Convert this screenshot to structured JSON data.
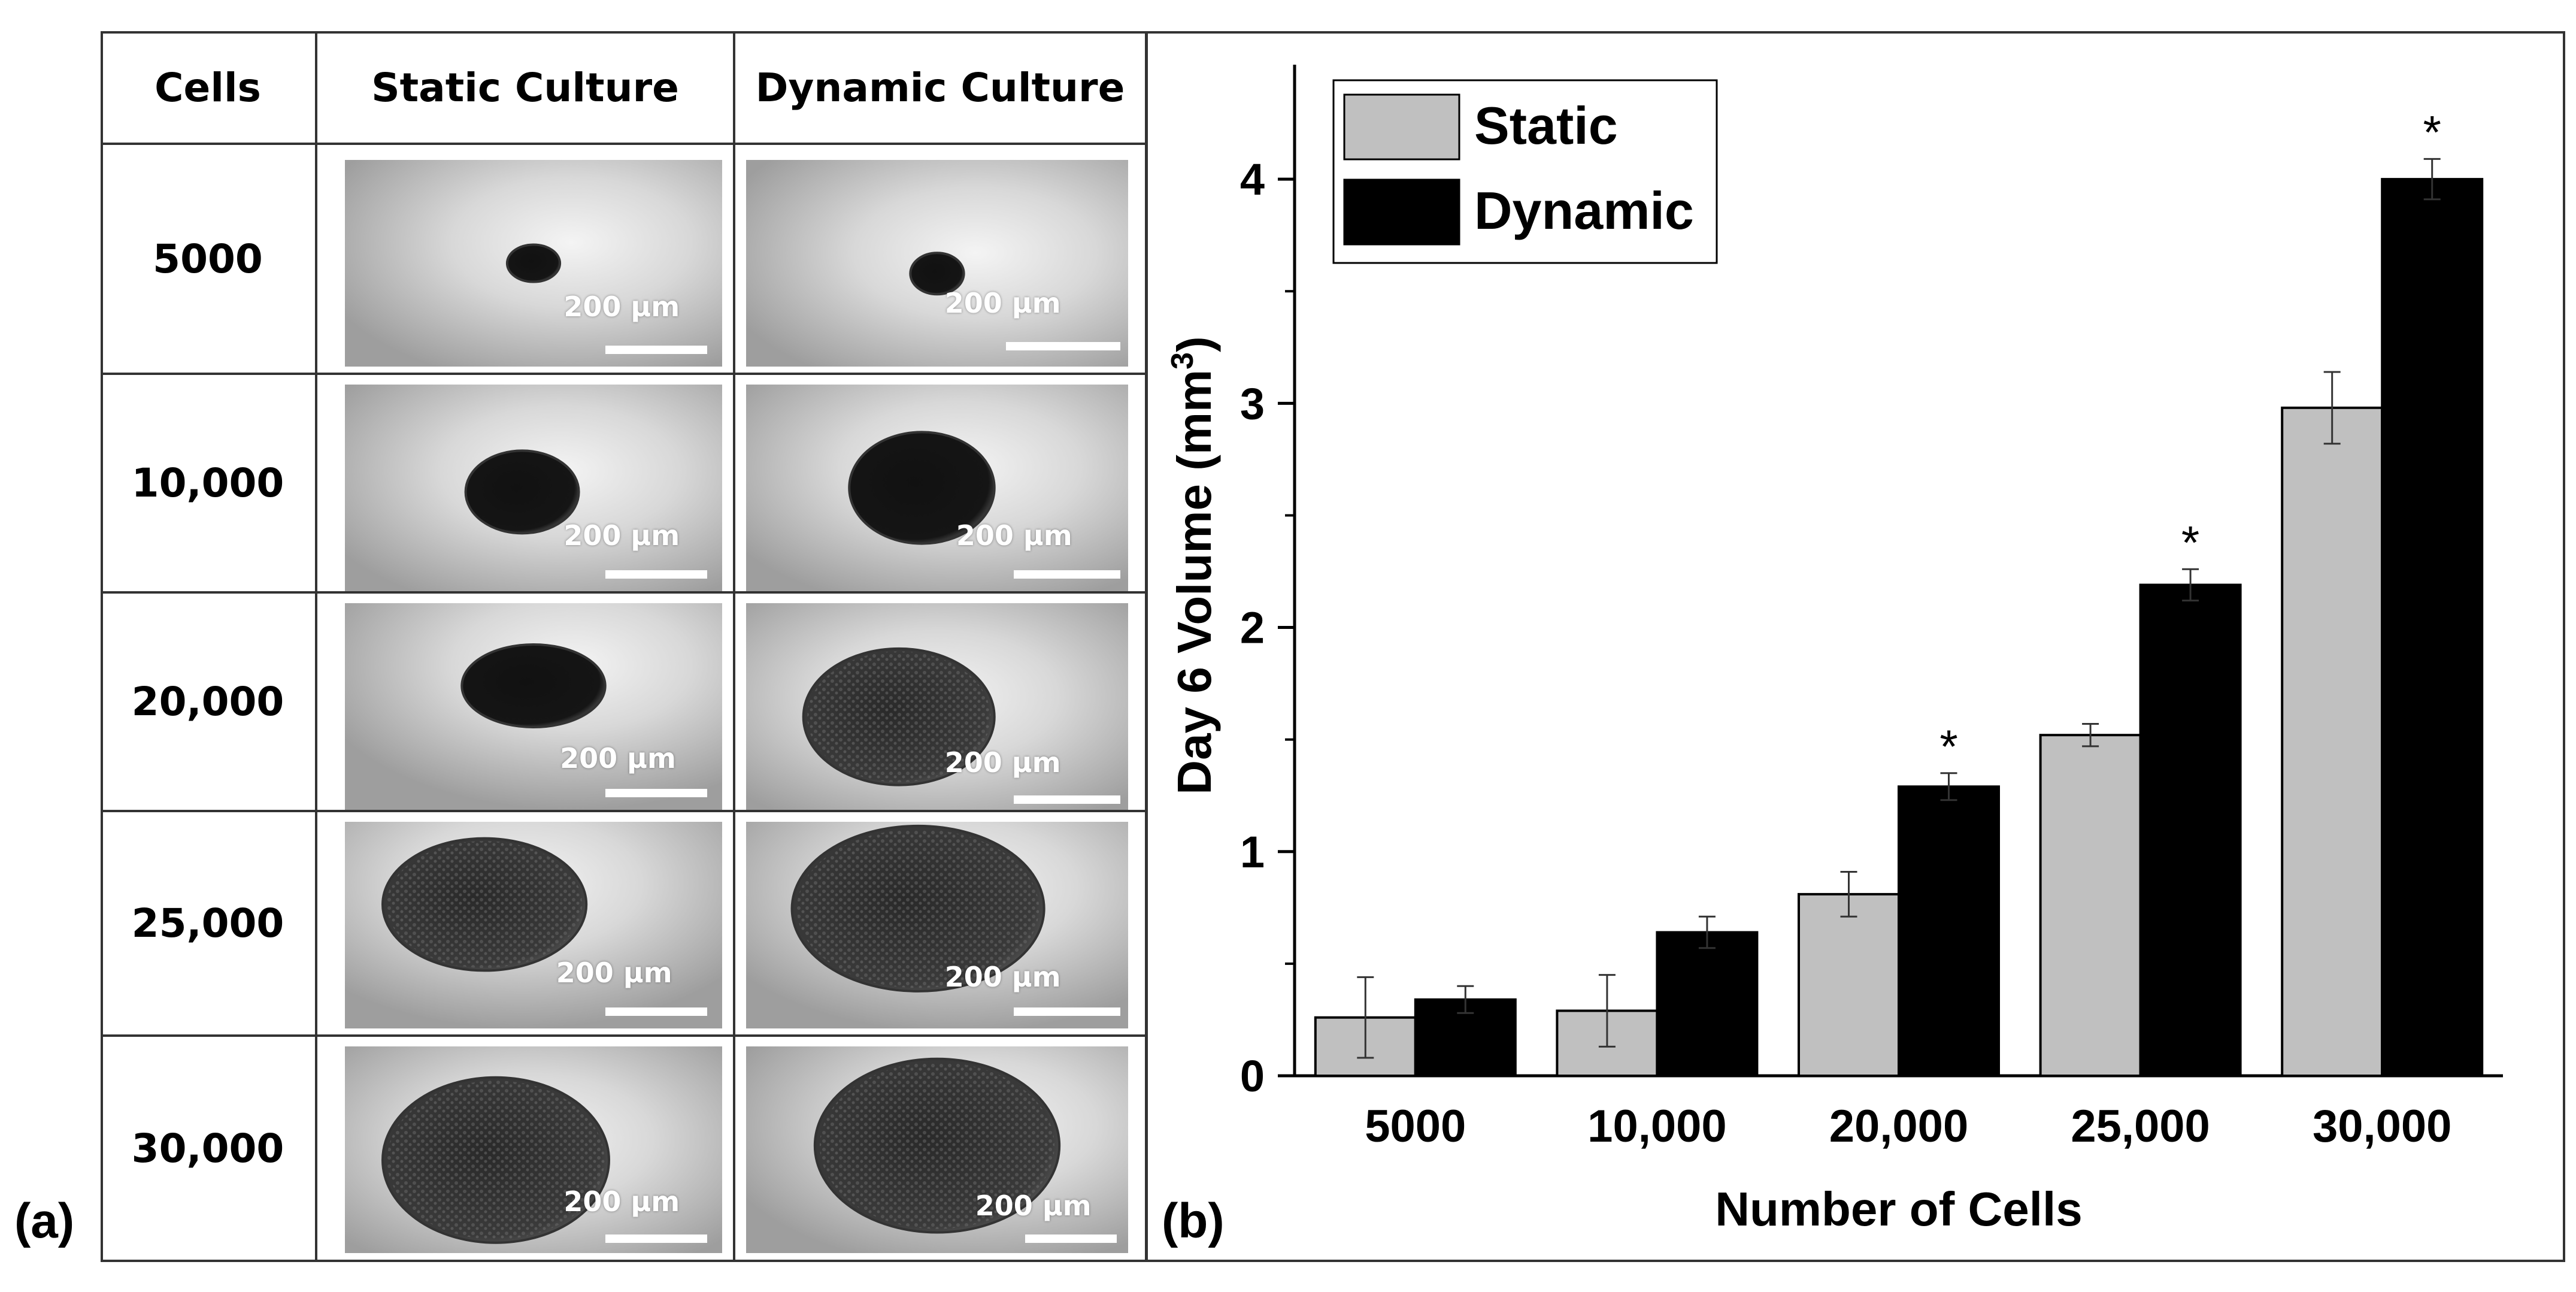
{
  "panel_labels": {
    "a": "(a)",
    "b": "(b)"
  },
  "table": {
    "headers": [
      "Cells",
      "Static Culture",
      "Dynamic Culture"
    ],
    "rows": [
      {
        "cells": "5000",
        "static_scale": "200 µm",
        "dynamic_scale": "200 µm"
      },
      {
        "cells": "10,000",
        "static_scale": "200 µm",
        "dynamic_scale": "200 µm"
      },
      {
        "cells": "20,000",
        "static_scale": "200 µm",
        "dynamic_scale": "200 µm"
      },
      {
        "cells": "25,000",
        "static_scale": "200 µm",
        "dynamic_scale": "200 µm"
      },
      {
        "cells": "30,000",
        "static_scale": "200 µm",
        "dynamic_scale": "200 µm"
      }
    ]
  },
  "chart_data": {
    "type": "bar",
    "categories": [
      "5000",
      "10,000",
      "20,000",
      "25,000",
      "30,000"
    ],
    "series": [
      {
        "name": "Static",
        "color": "#c0c0c0",
        "values": [
          0.26,
          0.29,
          0.81,
          1.52,
          2.98
        ],
        "errors": [
          0.18,
          0.16,
          0.1,
          0.05,
          0.16
        ]
      },
      {
        "name": "Dynamic",
        "color": "#000000",
        "values": [
          0.34,
          0.64,
          1.29,
          2.19,
          4.0
        ],
        "errors": [
          0.06,
          0.07,
          0.06,
          0.07,
          0.09
        ]
      }
    ],
    "significance": [
      {
        "category": "20,000",
        "series": "Dynamic",
        "label": "*"
      },
      {
        "category": "25,000",
        "series": "Dynamic",
        "label": "*"
      },
      {
        "category": "30,000",
        "series": "Dynamic",
        "label": "*"
      }
    ],
    "xlabel": "Number of Cells",
    "ylabel": {
      "text": "Day 6  Volume (mm",
      "superscript": "3",
      "suffix": ")"
    },
    "ylim": [
      0,
      4.5
    ],
    "yticks": [
      0,
      1,
      2,
      3,
      4
    ],
    "grid": false,
    "legend": "top-left"
  }
}
